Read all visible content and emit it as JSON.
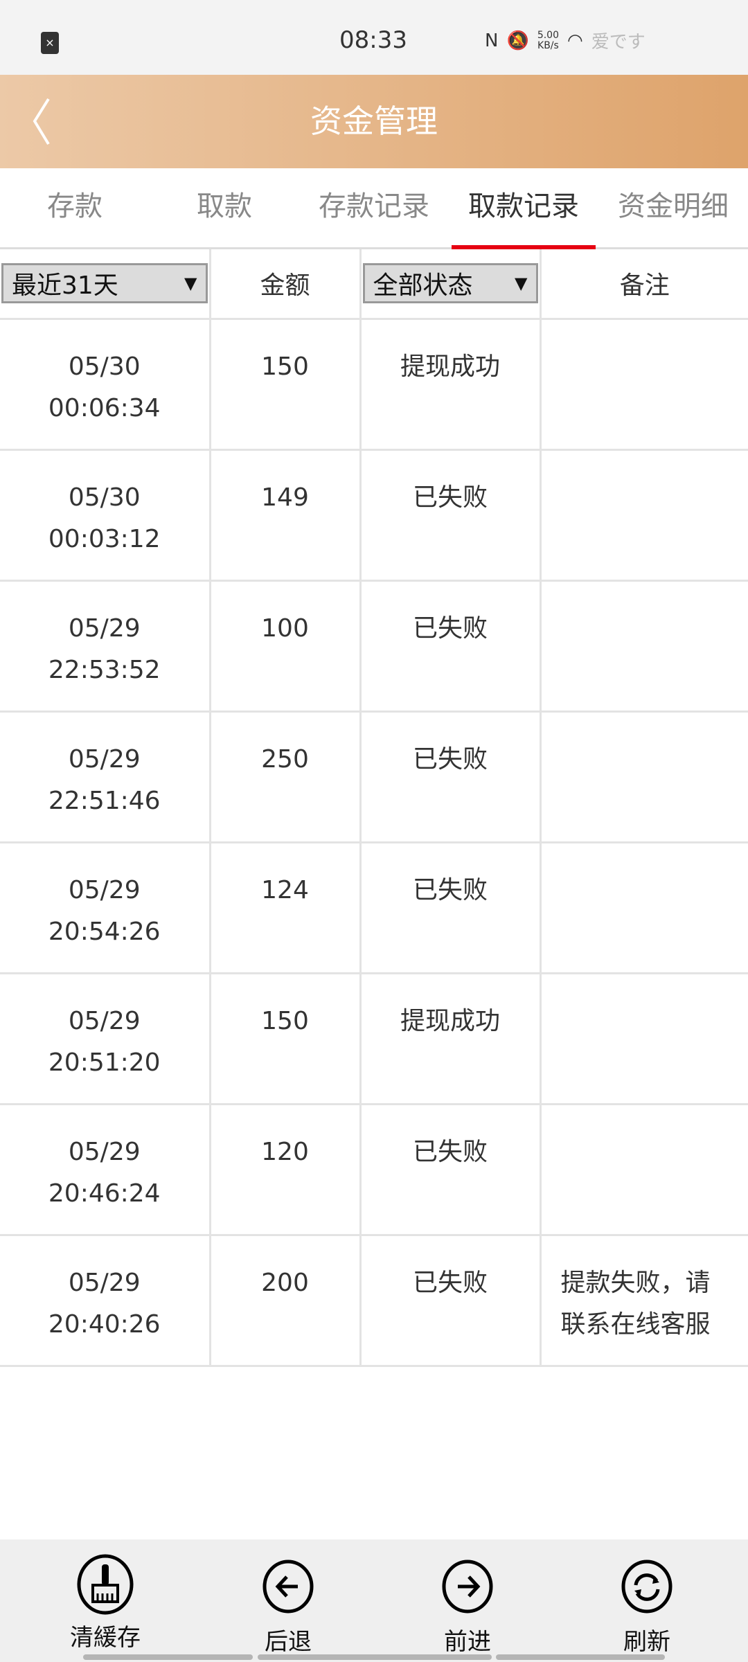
{
  "status_bar": {
    "time": "08:33",
    "speed_value": "5.00",
    "speed_unit": "KB/s",
    "carrier": "爱です"
  },
  "header": {
    "title": "资金管理"
  },
  "tabs": [
    {
      "label": "存款"
    },
    {
      "label": "取款"
    },
    {
      "label": "存款记录"
    },
    {
      "label": "取款记录",
      "active": true
    },
    {
      "label": "资金明细"
    }
  ],
  "table": {
    "period_select": "最近31天",
    "amount_header": "金额",
    "status_select": "全部状态",
    "note_header": "备注",
    "rows": [
      {
        "date": "05/30",
        "time": "00:06:34",
        "amount": "150",
        "status": "提现成功",
        "note": ""
      },
      {
        "date": "05/30",
        "time": "00:03:12",
        "amount": "149",
        "status": "已失败",
        "note": ""
      },
      {
        "date": "05/29",
        "time": "22:53:52",
        "amount": "100",
        "status": "已失败",
        "note": ""
      },
      {
        "date": "05/29",
        "time": "22:51:46",
        "amount": "250",
        "status": "已失败",
        "note": ""
      },
      {
        "date": "05/29",
        "time": "20:54:26",
        "amount": "124",
        "status": "已失败",
        "note": ""
      },
      {
        "date": "05/29",
        "time": "20:51:20",
        "amount": "150",
        "status": "提现成功",
        "note": ""
      },
      {
        "date": "05/29",
        "time": "20:46:24",
        "amount": "120",
        "status": "已失败",
        "note": ""
      },
      {
        "date": "05/29",
        "time": "20:40:26",
        "amount": "200",
        "status": "已失败",
        "note": "提款失败，请联系在线客服"
      }
    ]
  },
  "bottom_bar": {
    "clear_cache": "清緩存",
    "back": "后退",
    "forward": "前进",
    "refresh": "刷新"
  },
  "colors": {
    "header_start": "#ecc9a7",
    "header_end": "#dea36b",
    "active_tab_underline": "#e60012"
  }
}
